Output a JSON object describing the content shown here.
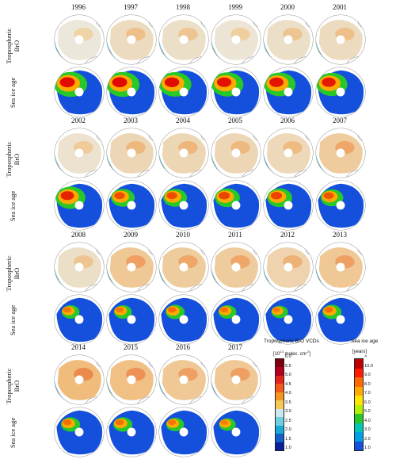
{
  "row_labels": {
    "bro": "Tropospheric BrO",
    "age": "Sea ice age"
  },
  "groups": [
    {
      "years": [
        "1996",
        "1997",
        "1998",
        "1999",
        "2000",
        "2001"
      ],
      "bro_level": [
        0.18,
        0.35,
        0.3,
        0.22,
        0.3,
        0.35
      ],
      "age_level": [
        0.95,
        0.95,
        0.92,
        0.9,
        0.88,
        0.85
      ]
    },
    {
      "years": [
        "2002",
        "2003",
        "2004",
        "2005",
        "2006",
        "2007"
      ],
      "bro_level": [
        0.25,
        0.4,
        0.42,
        0.4,
        0.38,
        0.55
      ],
      "age_level": [
        0.8,
        0.55,
        0.55,
        0.6,
        0.6,
        0.5
      ]
    },
    {
      "years": [
        "2008",
        "2009",
        "2010",
        "2011",
        "2012",
        "2013"
      ],
      "bro_level": [
        0.3,
        0.6,
        0.55,
        0.55,
        0.45,
        0.6
      ],
      "age_level": [
        0.3,
        0.3,
        0.35,
        0.3,
        0.25,
        0.35
      ]
    },
    {
      "years": [
        "2014",
        "2015",
        "2016",
        "2017"
      ],
      "bro_level": [
        0.75,
        0.7,
        0.6,
        0.6
      ],
      "age_level": [
        0.35,
        0.35,
        0.3,
        0.25
      ]
    }
  ],
  "legend_bro": {
    "title": "Tropospheric BrO VCDs",
    "unit_base": "[10",
    "unit_exp": "13",
    "unit_rest": " molec. cm",
    "unit_exp2": "-2",
    "unit_close": "]",
    "ticks": [
      "6.0",
      "5.5",
      "5.0",
      "4.5",
      "4.0",
      "3.5",
      "3.0",
      "2.5",
      "2.0",
      "1.5",
      "1.0"
    ],
    "colors": [
      "#7a0010",
      "#b3001e",
      "#e0261a",
      "#f05a1a",
      "#f5961e",
      "#f5c85a",
      "#cde6f0",
      "#6fcfe0",
      "#1aa8d6",
      "#1560c8",
      "#0a1f9a"
    ]
  },
  "legend_age": {
    "title": "Sea ice age",
    "unit": "[years]",
    "ticks": [
      ">",
      "10.0",
      "9.0",
      "8.0",
      "7.0",
      "6.0",
      "5.0",
      "4.0",
      "3.0",
      "2.0",
      "1.0"
    ],
    "colors": [
      "#c00000",
      "#ff1a00",
      "#ff6a00",
      "#ffaa00",
      "#ffe600",
      "#b4f000",
      "#28c828",
      "#00c8b4",
      "#00a0e6",
      "#1450dc"
    ]
  }
}
